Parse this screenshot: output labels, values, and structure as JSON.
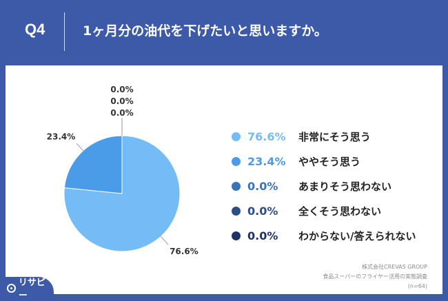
{
  "header": {
    "q_label": "Q4",
    "question": "1ヶ月分の油代を下げたいと思いますか。"
  },
  "chart_data": {
    "type": "pie",
    "categories": [
      "非常にそう思う",
      "ややそう思う",
      "あまりそう思わない",
      "全くそう思わない",
      "わからない/答えられない"
    ],
    "values": [
      76.6,
      23.4,
      0.0,
      0.0,
      0.0
    ],
    "value_labels": [
      "76.6%",
      "23.4%",
      "0.0%",
      "0.0%",
      "0.0%"
    ],
    "colors": [
      "#74bcf5",
      "#4a9be8",
      "#3a73b8",
      "#2a4f86",
      "#1f3366"
    ],
    "legend_position": "right"
  },
  "source": {
    "line1": "株式会社CREVAS GROUP",
    "line2": "食品スーパーのフライヤー活用の実態調査",
    "line3": "(n=64)"
  },
  "logo": {
    "text": "リサピー"
  }
}
